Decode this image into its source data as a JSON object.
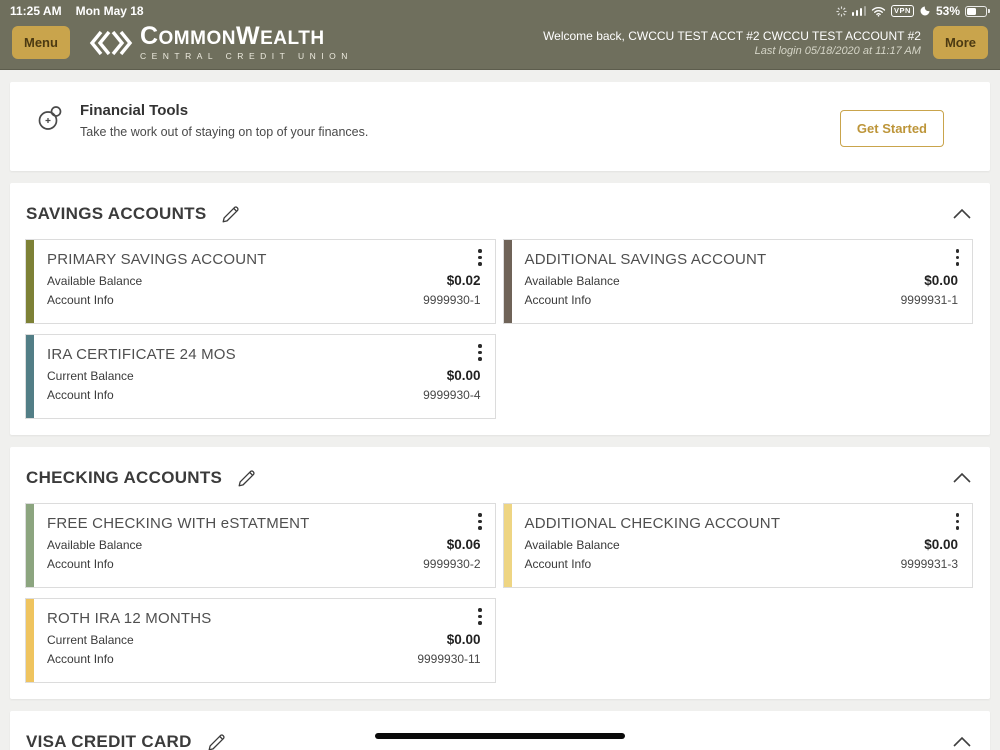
{
  "status_bar": {
    "time": "11:25 AM",
    "date": "Mon May 18",
    "vpn_badge": "VPN",
    "battery_percent": "53%"
  },
  "header": {
    "menu_button": "Menu",
    "brand_name": "CommonWealth",
    "brand_tagline": "CENTRAL CREDIT UNION",
    "welcome_text": "Welcome back, CWCCU TEST ACCT #2 CWCCU TEST ACCOUNT #2",
    "last_login": "Last login 05/18/2020 at 11:17 AM",
    "more_button": "More"
  },
  "financial_tools": {
    "title": "Financial Tools",
    "subtitle": "Take the work out of staying on top of your finances.",
    "button_label": "Get Started"
  },
  "sections": [
    {
      "id": "savings",
      "title": "SAVINGS ACCOUNTS",
      "accounts": [
        {
          "name": "PRIMARY SAVINGS ACCOUNT",
          "balance_label": "Available Balance",
          "balance": "$0.02",
          "info_label": "Account Info",
          "account_number": "9999930-1",
          "stripe_color": "#7d8136"
        },
        {
          "name": "ADDITIONAL SAVINGS ACCOUNT",
          "balance_label": "Available Balance",
          "balance": "$0.00",
          "info_label": "Account Info",
          "account_number": "9999931-1",
          "stripe_color": "#6f6358"
        },
        {
          "name": "IRA CERTIFICATE 24 MOS",
          "balance_label": "Current Balance",
          "balance": "$0.00",
          "info_label": "Account Info",
          "account_number": "9999930-4",
          "stripe_color": "#527e86"
        }
      ]
    },
    {
      "id": "checking",
      "title": "CHECKING ACCOUNTS",
      "accounts": [
        {
          "name": "FREE CHECKING WITH eSTATMENT",
          "balance_label": "Available Balance",
          "balance": "$0.06",
          "info_label": "Account Info",
          "account_number": "9999930-2",
          "stripe_color": "#8ca57f"
        },
        {
          "name": "ADDITIONAL CHECKING ACCOUNT",
          "balance_label": "Available Balance",
          "balance": "$0.00",
          "info_label": "Account Info",
          "account_number": "9999931-3",
          "stripe_color": "#eed583"
        },
        {
          "name": "ROTH IRA 12 MONTHS",
          "balance_label": "Current Balance",
          "balance": "$0.00",
          "info_label": "Account Info",
          "account_number": "9999930-11",
          "stripe_color": "#efc45f"
        }
      ]
    },
    {
      "id": "visa",
      "title": "VISA CREDIT CARD",
      "accounts": []
    }
  ],
  "icons": [
    "network-activity-icon",
    "cellular-signal-icon",
    "wifi-icon",
    "vpn-badge",
    "moon-icon",
    "battery-icon",
    "brand-chevrons-icon",
    "financial-tools-icon",
    "edit-pencil-icon",
    "collapse-chevron-icon",
    "kebab-menu-icon"
  ],
  "colors": {
    "header_olive": "#6f6f5d",
    "accent_gold": "#c9a44c",
    "page_background": "#f0f0ee"
  }
}
